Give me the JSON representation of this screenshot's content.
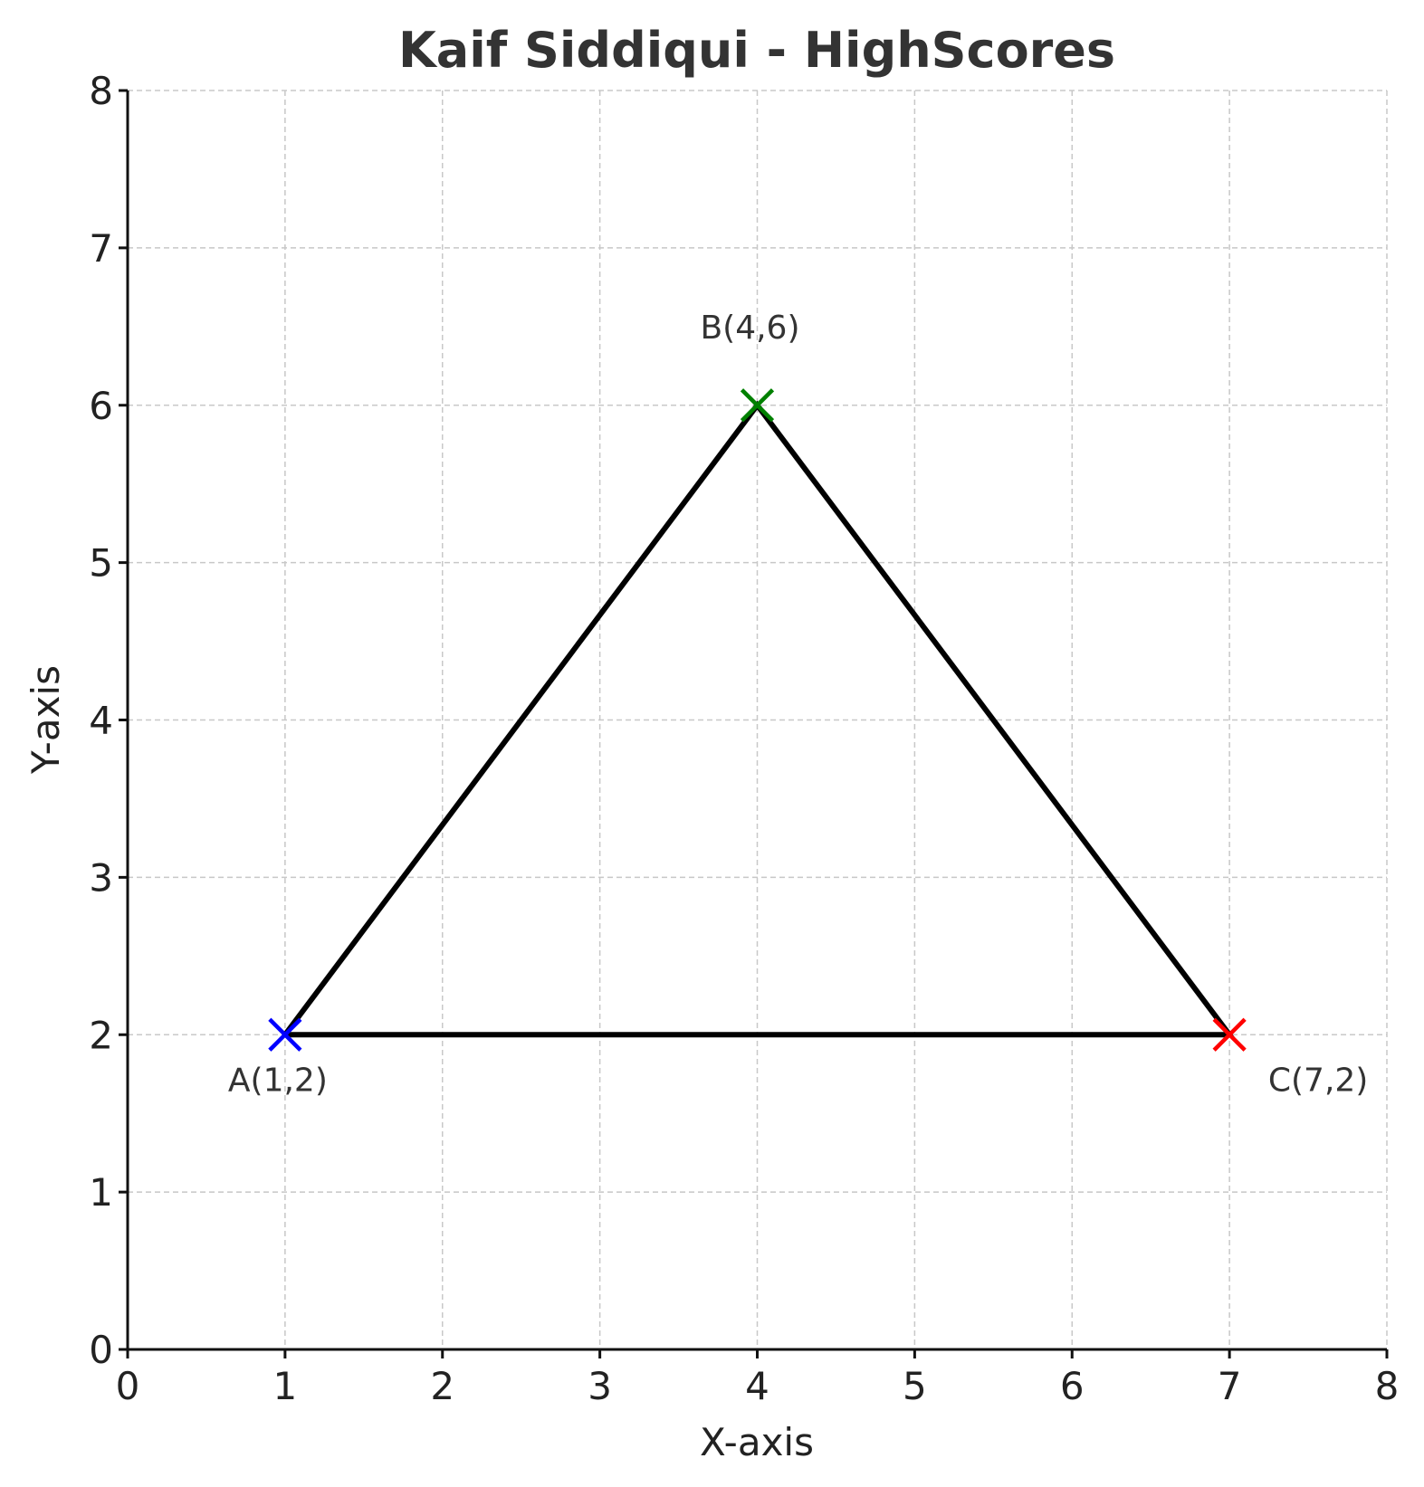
{
  "chart_data": {
    "type": "line",
    "title": "Kaif Siddiqui - HighScores",
    "xlabel": "X-axis",
    "ylabel": "Y-axis",
    "xlim": [
      0,
      8
    ],
    "ylim": [
      0,
      8
    ],
    "xticks": [
      0,
      1,
      2,
      3,
      4,
      5,
      6,
      7,
      8
    ],
    "yticks": [
      0,
      1,
      2,
      3,
      4,
      5,
      6,
      7,
      8
    ],
    "grid": true,
    "series": [
      {
        "x": [
          1,
          4,
          7,
          1
        ],
        "y": [
          2,
          6,
          2,
          2
        ],
        "color": "#000000"
      }
    ],
    "points": [
      {
        "label": "A(1,2)",
        "x": 1,
        "y": 2,
        "color": "#0000ff",
        "marker": "x"
      },
      {
        "label": "B(4,6)",
        "x": 4,
        "y": 6,
        "color": "#008000",
        "marker": "x"
      },
      {
        "label": "C(7,2)",
        "x": 7,
        "y": 2,
        "color": "#ff0000",
        "marker": "x"
      }
    ]
  }
}
